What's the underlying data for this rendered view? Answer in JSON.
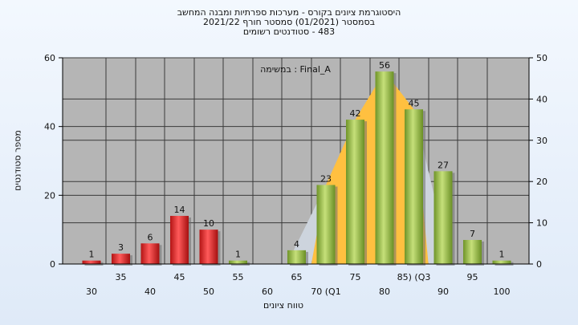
{
  "header": {
    "line1": "היסטוגרמת ציונים בקורס - מערכות ספרתיות ומבנה המחשב",
    "line2": "בסמסטר  (01/2021)  סמסטר חורף 2021/22",
    "line3": "483 - סטודנטים רשומים"
  },
  "chart_data": {
    "type": "bar",
    "xlabel": "טווח ציונים",
    "ylabel": "מספר סטודנטים",
    "annotation": "Final_A : במשימה",
    "x_tick_labels_upper": [
      "35",
      "45",
      "55",
      "65",
      "75",
      "85)    (Q3",
      "95"
    ],
    "x_tick_labels_lower": [
      "30",
      "40",
      "50",
      "60",
      "70    (Q1",
      "80",
      "90",
      "100"
    ],
    "categories": [
      "30",
      "35",
      "40",
      "45",
      "50",
      "55",
      "60",
      "65",
      "70",
      "75",
      "80",
      "85",
      "90",
      "95",
      "100"
    ],
    "values": [
      1,
      3,
      6,
      14,
      10,
      1,
      0,
      4,
      23,
      42,
      56,
      45,
      27,
      7,
      1
    ],
    "failing_color": "#d42020",
    "passing_color": "#8fb040",
    "band_color": "#ffc040",
    "y_left": {
      "min": 0,
      "max": 60,
      "ticks": [
        0,
        20,
        40,
        60
      ]
    },
    "y_right": {
      "min": 0,
      "max": 50,
      "ticks": [
        0,
        10,
        20,
        30,
        40,
        50
      ]
    },
    "quartile_band": {
      "q1": 70,
      "q3": 85
    },
    "grid": true
  }
}
